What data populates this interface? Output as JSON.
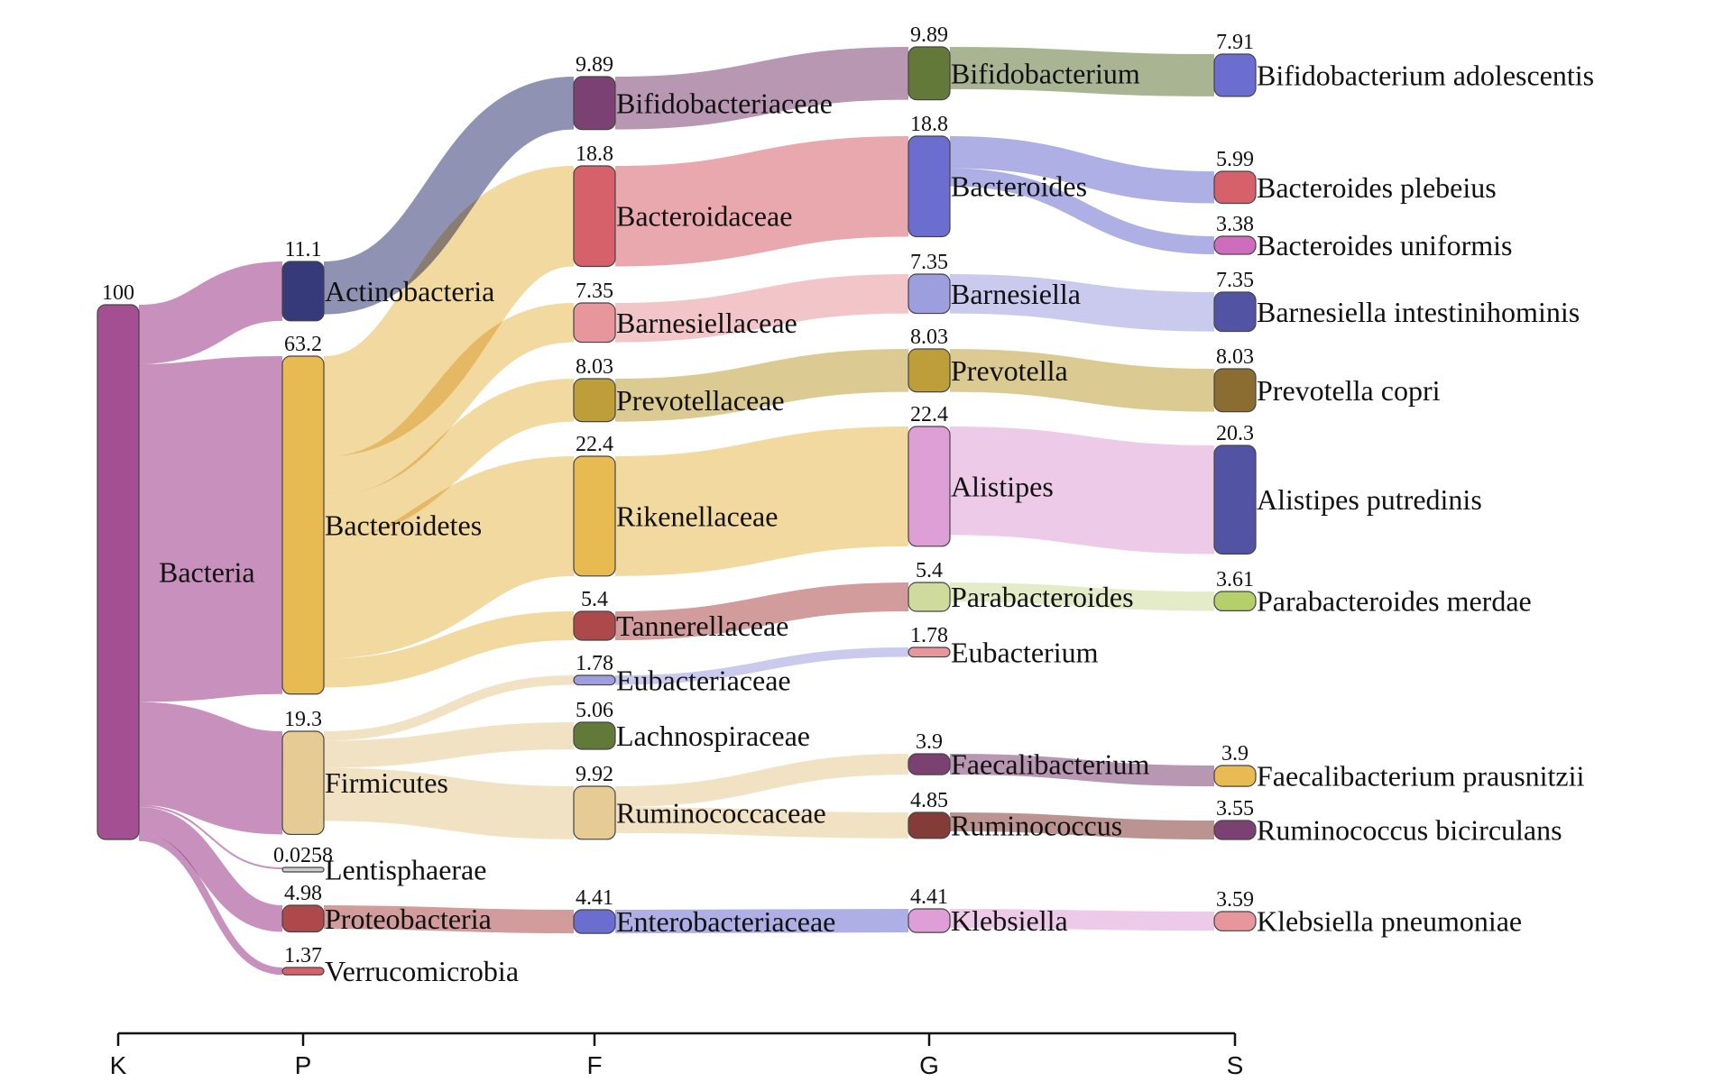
{
  "chart_data": {
    "type": "sankey",
    "levels": [
      "K",
      "P",
      "F",
      "G",
      "S"
    ],
    "nodes": [
      {
        "id": "bacteria",
        "label": "Bacteria",
        "level": "K",
        "value": 100,
        "color": "#a44f91"
      },
      {
        "id": "actinobacteria",
        "label": "Actinobacteria",
        "level": "P",
        "value": 11.1,
        "color": "#36397a"
      },
      {
        "id": "bacteroidetes",
        "label": "Bacteroidetes",
        "level": "P",
        "value": 63.2,
        "color": "#e7ba52"
      },
      {
        "id": "firmicutes",
        "label": "Firmicutes",
        "level": "P",
        "value": 19.3,
        "color": "#e7cb94"
      },
      {
        "id": "lentisphaerae",
        "label": "Lentisphaerae",
        "level": "P",
        "value": 0.0258,
        "color": "#cccccc"
      },
      {
        "id": "proteobacteria",
        "label": "Proteobacteria",
        "level": "P",
        "value": 4.98,
        "color": "#ad494a"
      },
      {
        "id": "verrucomicrobia",
        "label": "Verrucomicrobia",
        "level": "P",
        "value": 1.37,
        "color": "#d6616b"
      },
      {
        "id": "bifidobacteriaceae",
        "label": "Bifidobacteriaceae",
        "level": "F",
        "value": 9.89,
        "color": "#7b4173"
      },
      {
        "id": "bacteroidaceae",
        "label": "Bacteroidaceae",
        "level": "F",
        "value": 18.8,
        "color": "#d6616b"
      },
      {
        "id": "barnesiellaceae",
        "label": "Barnesiellaceae",
        "level": "F",
        "value": 7.35,
        "color": "#e7969c"
      },
      {
        "id": "prevotellaceae",
        "label": "Prevotellaceae",
        "level": "F",
        "value": 8.03,
        "color": "#bd9e39"
      },
      {
        "id": "rikenellaceae",
        "label": "Rikenellaceae",
        "level": "F",
        "value": 22.4,
        "color": "#e7ba52"
      },
      {
        "id": "tannerellaceae",
        "label": "Tannerellaceae",
        "level": "F",
        "value": 5.4,
        "color": "#ad494a"
      },
      {
        "id": "eubacteriaceae",
        "label": "Eubacteriaceae",
        "level": "F",
        "value": 1.78,
        "color": "#9c9ede"
      },
      {
        "id": "lachnospiraceae",
        "label": "Lachnospiraceae",
        "level": "F",
        "value": 5.06,
        "color": "#637939"
      },
      {
        "id": "ruminococcaceae",
        "label": "Ruminococcaceae",
        "level": "F",
        "value": 9.92,
        "color": "#e7cb94"
      },
      {
        "id": "enterobacteriaceae",
        "label": "Enterobacteriaceae",
        "level": "F",
        "value": 4.41,
        "color": "#6b6ecf"
      },
      {
        "id": "bifidobacterium",
        "label": "Bifidobacterium",
        "level": "G",
        "value": 9.89,
        "color": "#637939"
      },
      {
        "id": "bacteroides",
        "label": "Bacteroides",
        "level": "G",
        "value": 18.8,
        "color": "#6b6ecf"
      },
      {
        "id": "barnesiella",
        "label": "Barnesiella",
        "level": "G",
        "value": 7.35,
        "color": "#9c9ede"
      },
      {
        "id": "prevotella",
        "label": "Prevotella",
        "level": "G",
        "value": 8.03,
        "color": "#bd9e39"
      },
      {
        "id": "alistipes",
        "label": "Alistipes",
        "level": "G",
        "value": 22.4,
        "color": "#de9ed6"
      },
      {
        "id": "parabacteroides",
        "label": "Parabacteroides",
        "level": "G",
        "value": 5.4,
        "color": "#cedb9c"
      },
      {
        "id": "eubacterium",
        "label": "Eubacterium",
        "level": "G",
        "value": 1.78,
        "color": "#e7969c"
      },
      {
        "id": "faecalibacterium",
        "label": "Faecalibacterium",
        "level": "G",
        "value": 3.9,
        "color": "#7b4173"
      },
      {
        "id": "ruminococcus",
        "label": "Ruminococcus",
        "level": "G",
        "value": 4.85,
        "color": "#843c39"
      },
      {
        "id": "klebsiella",
        "label": "Klebsiella",
        "level": "G",
        "value": 4.41,
        "color": "#de9ed6"
      },
      {
        "id": "b_adolescentis",
        "label": "Bifidobacterium adolescentis",
        "level": "S",
        "value": 7.91,
        "color": "#6b6ecf"
      },
      {
        "id": "b_plebeius",
        "label": "Bacteroides plebeius",
        "level": "S",
        "value": 5.99,
        "color": "#d6616b"
      },
      {
        "id": "b_uniformis",
        "label": "Bacteroides uniformis",
        "level": "S",
        "value": 3.38,
        "color": "#ce6dbd"
      },
      {
        "id": "b_intestinihominis",
        "label": "Barnesiella intestinihominis",
        "level": "S",
        "value": 7.35,
        "color": "#5254a3"
      },
      {
        "id": "p_copri",
        "label": "Prevotella copri",
        "level": "S",
        "value": 8.03,
        "color": "#8c6d31"
      },
      {
        "id": "a_putredinis",
        "label": "Alistipes putredinis",
        "level": "S",
        "value": 20.3,
        "color": "#5254a3"
      },
      {
        "id": "p_merdae",
        "label": "Parabacteroides merdae",
        "level": "S",
        "value": 3.61,
        "color": "#b5cf6b"
      },
      {
        "id": "f_prausnitzii",
        "label": "Faecalibacterium prausnitzii",
        "level": "S",
        "value": 3.9,
        "color": "#e7ba52"
      },
      {
        "id": "r_bicirculans",
        "label": "Ruminococcus bicirculans",
        "level": "S",
        "value": 3.55,
        "color": "#7b4173"
      },
      {
        "id": "k_pneumoniae",
        "label": "Klebsiella pneumoniae",
        "level": "S",
        "value": 3.59,
        "color": "#e7969c"
      }
    ],
    "links": [
      {
        "source": "bacteria",
        "target": "actinobacteria",
        "value": 11.1
      },
      {
        "source": "bacteria",
        "target": "bacteroidetes",
        "value": 63.2
      },
      {
        "source": "bacteria",
        "target": "firmicutes",
        "value": 19.3
      },
      {
        "source": "bacteria",
        "target": "lentisphaerae",
        "value": 0.0258
      },
      {
        "source": "bacteria",
        "target": "proteobacteria",
        "value": 4.98
      },
      {
        "source": "bacteria",
        "target": "verrucomicrobia",
        "value": 1.37
      },
      {
        "source": "actinobacteria",
        "target": "bifidobacteriaceae",
        "value": 9.89
      },
      {
        "source": "bacteroidetes",
        "target": "bacteroidaceae",
        "value": 18.8
      },
      {
        "source": "bacteroidetes",
        "target": "barnesiellaceae",
        "value": 7.35
      },
      {
        "source": "bacteroidetes",
        "target": "prevotellaceae",
        "value": 8.03
      },
      {
        "source": "bacteroidetes",
        "target": "rikenellaceae",
        "value": 22.4
      },
      {
        "source": "bacteroidetes",
        "target": "tannerellaceae",
        "value": 5.4
      },
      {
        "source": "firmicutes",
        "target": "eubacteriaceae",
        "value": 1.78
      },
      {
        "source": "firmicutes",
        "target": "lachnospiraceae",
        "value": 5.06
      },
      {
        "source": "firmicutes",
        "target": "ruminococcaceae",
        "value": 9.92
      },
      {
        "source": "proteobacteria",
        "target": "enterobacteriaceae",
        "value": 4.41
      },
      {
        "source": "bifidobacteriaceae",
        "target": "bifidobacterium",
        "value": 9.89
      },
      {
        "source": "bacteroidaceae",
        "target": "bacteroides",
        "value": 18.8
      },
      {
        "source": "barnesiellaceae",
        "target": "barnesiella",
        "value": 7.35
      },
      {
        "source": "prevotellaceae",
        "target": "prevotella",
        "value": 8.03
      },
      {
        "source": "rikenellaceae",
        "target": "alistipes",
        "value": 22.4
      },
      {
        "source": "tannerellaceae",
        "target": "parabacteroides",
        "value": 5.4
      },
      {
        "source": "eubacteriaceae",
        "target": "eubacterium",
        "value": 1.78
      },
      {
        "source": "ruminococcaceae",
        "target": "faecalibacterium",
        "value": 3.9
      },
      {
        "source": "ruminococcaceae",
        "target": "ruminococcus",
        "value": 4.85
      },
      {
        "source": "enterobacteriaceae",
        "target": "klebsiella",
        "value": 4.41
      },
      {
        "source": "bifidobacterium",
        "target": "b_adolescentis",
        "value": 7.91
      },
      {
        "source": "bacteroides",
        "target": "b_plebeius",
        "value": 5.99
      },
      {
        "source": "bacteroides",
        "target": "b_uniformis",
        "value": 3.38
      },
      {
        "source": "barnesiella",
        "target": "b_intestinihominis",
        "value": 7.35
      },
      {
        "source": "prevotella",
        "target": "p_copri",
        "value": 8.03
      },
      {
        "source": "alistipes",
        "target": "a_putredinis",
        "value": 20.3
      },
      {
        "source": "parabacteroides",
        "target": "p_merdae",
        "value": 3.61
      },
      {
        "source": "faecalibacterium",
        "target": "f_prausnitzii",
        "value": 3.9
      },
      {
        "source": "ruminococcus",
        "target": "r_bicirculans",
        "value": 3.55
      },
      {
        "source": "klebsiella",
        "target": "k_pneumoniae",
        "value": 3.59
      }
    ]
  }
}
